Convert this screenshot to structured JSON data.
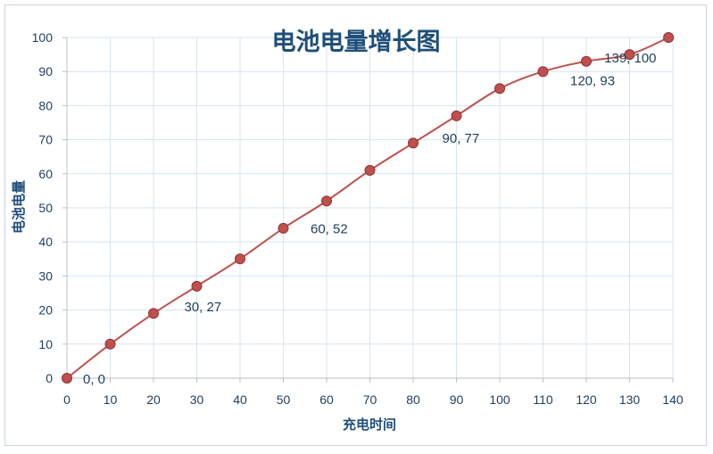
{
  "chart_data": {
    "type": "line",
    "title": "电池电量增长图",
    "xlabel": "充电时间",
    "ylabel": "电池电量",
    "xlim": [
      0,
      140
    ],
    "ylim": [
      0,
      100
    ],
    "x_ticks": [
      0,
      10,
      20,
      30,
      40,
      50,
      60,
      70,
      80,
      90,
      100,
      110,
      120,
      130,
      140
    ],
    "y_ticks": [
      0,
      10,
      20,
      30,
      40,
      50,
      60,
      70,
      80,
      90,
      100
    ],
    "grid": true,
    "smooth": true,
    "series": [
      {
        "x": [
          0,
          10,
          20,
          30,
          40,
          50,
          60,
          70,
          80,
          90,
          100,
          110,
          120,
          130,
          139
        ],
        "y": [
          0,
          10,
          19,
          27,
          35,
          44,
          52,
          61,
          69,
          77,
          85,
          90,
          93,
          95,
          100
        ]
      }
    ],
    "data_labels": [
      {
        "text": "0, 0",
        "x": 0,
        "y": 0
      },
      {
        "text": "30, 27",
        "x": 30,
        "y": 27
      },
      {
        "text": "60, 52",
        "x": 60,
        "y": 52
      },
      {
        "text": "90, 77",
        "x": 90,
        "y": 77
      },
      {
        "text": "120, 93",
        "x": 120,
        "y": 93
      },
      {
        "text": "139, 100",
        "x": 139,
        "y": 100
      }
    ],
    "colors": {
      "line": "#c0504d",
      "marker": "#c0504d",
      "grid": "#d6e4f0",
      "text": "#1f3d5c",
      "title": "#1f4e79"
    }
  }
}
